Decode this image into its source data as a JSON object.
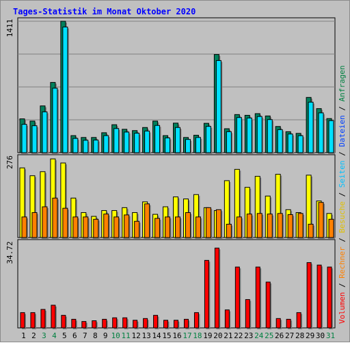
{
  "title": "Tages-Statistik im Monat Oktober 2020",
  "panel_labels": {
    "top_max": "1411",
    "mid_max": "276",
    "bottom_max": "34.72"
  },
  "right_legend": {
    "anfragen": "Anfragen",
    "dateien": "Dateien",
    "seiten": "Seiten",
    "besuche": "Besuche",
    "rechner": "Rechner",
    "volumen": "Volumen",
    "sep": " / "
  },
  "colors": {
    "title": "#0000ff",
    "anfragen": "#008040",
    "anfragen_bar": "#00805c",
    "dateien": "#0040ff",
    "dateien_bar": "#00e0ff",
    "seiten": "#00c0ff",
    "seiten_bar": "#ffff00",
    "besuche": "#ffff00",
    "rechner": "#ff8000",
    "rechner_bar": "#ff8000",
    "volumen": "#ff0000",
    "volumen_bar": "#ff0000",
    "day_weekend": "#008040",
    "day_weekday": "#000000"
  },
  "chart_data": [
    {
      "type": "bar",
      "title": "Tages-Statistik im Monat Oktober 2020",
      "ylim": [
        0,
        1411
      ],
      "categories": [
        "1",
        "2",
        "3",
        "4",
        "5",
        "6",
        "7",
        "8",
        "9",
        "10",
        "11",
        "12",
        "13",
        "14",
        "15",
        "16",
        "17",
        "18",
        "19",
        "20",
        "21",
        "22",
        "23",
        "24",
        "25",
        "26",
        "27",
        "28",
        "29",
        "30",
        "31"
      ],
      "weekend_days": [
        "3",
        "4",
        "10",
        "11",
        "17",
        "18",
        "24",
        "25",
        "31"
      ],
      "series": [
        {
          "name": "Anfragen",
          "values": [
            363,
            339,
            502,
            754,
            1411,
            183,
            163,
            163,
            214,
            300,
            251,
            237,
            270,
            339,
            183,
            317,
            163,
            187,
            315,
            1054,
            257,
            409,
            401,
            419,
            394,
            281,
            225,
            207,
            593,
            473,
            366
          ]
        },
        {
          "name": "Dateien",
          "values": [
            304,
            289,
            438,
            692,
            1349,
            153,
            133,
            135,
            183,
            259,
            221,
            209,
            232,
            292,
            158,
            270,
            142,
            163,
            282,
            989,
            225,
            377,
            372,
            388,
            355,
            247,
            200,
            182,
            542,
            427,
            344
          ]
        }
      ]
    },
    {
      "type": "bar",
      "ylim": [
        0,
        276
      ],
      "categories": [
        "1",
        "2",
        "3",
        "4",
        "5",
        "6",
        "7",
        "8",
        "9",
        "10",
        "11",
        "12",
        "13",
        "14",
        "15",
        "16",
        "17",
        "18",
        "19",
        "20",
        "21",
        "22",
        "23",
        "24",
        "25",
        "26",
        "27",
        "28",
        "29",
        "30",
        "31"
      ],
      "series": [
        {
          "name": "Seiten",
          "values": [
            240,
            213,
            227,
            271,
            257,
            136,
            86,
            73,
            93,
            93,
            103,
            86,
            123,
            80,
            106,
            140,
            133,
            148,
            103,
            93,
            196,
            235,
            173,
            211,
            143,
            218,
            96,
            86,
            215,
            126,
            83
          ]
        },
        {
          "name": "Besuche",
          "values": [
            71,
            86,
            106,
            136,
            101,
            71,
            71,
            63,
            81,
            71,
            78,
            56,
            116,
            66,
            71,
            71,
            86,
            71,
            103,
            96,
            46,
            71,
            81,
            83,
            81,
            83,
            79,
            83,
            46,
            121,
            63
          ]
        }
      ]
    },
    {
      "type": "bar",
      "ylim": [
        0,
        34.72
      ],
      "categories": [
        "1",
        "2",
        "3",
        "4",
        "5",
        "6",
        "7",
        "8",
        "9",
        "10",
        "11",
        "12",
        "13",
        "14",
        "15",
        "16",
        "17",
        "18",
        "19",
        "20",
        "21",
        "22",
        "23",
        "24",
        "25",
        "26",
        "27",
        "28",
        "29",
        "30",
        "31"
      ],
      "series": [
        {
          "name": "Volumen",
          "values": [
            6.2,
            6.2,
            7.5,
            9.2,
            5.1,
            3.5,
            2.6,
            2.9,
            3.5,
            4.1,
            4.1,
            3.1,
            3.8,
            5.1,
            3.1,
            3.1,
            3.5,
            6.2,
            27.4,
            32.4,
            7.3,
            24.7,
            11.5,
            24.7,
            18.6,
            3.8,
            3.5,
            6.2,
            26.5,
            25.5,
            24.7
          ]
        }
      ]
    }
  ]
}
